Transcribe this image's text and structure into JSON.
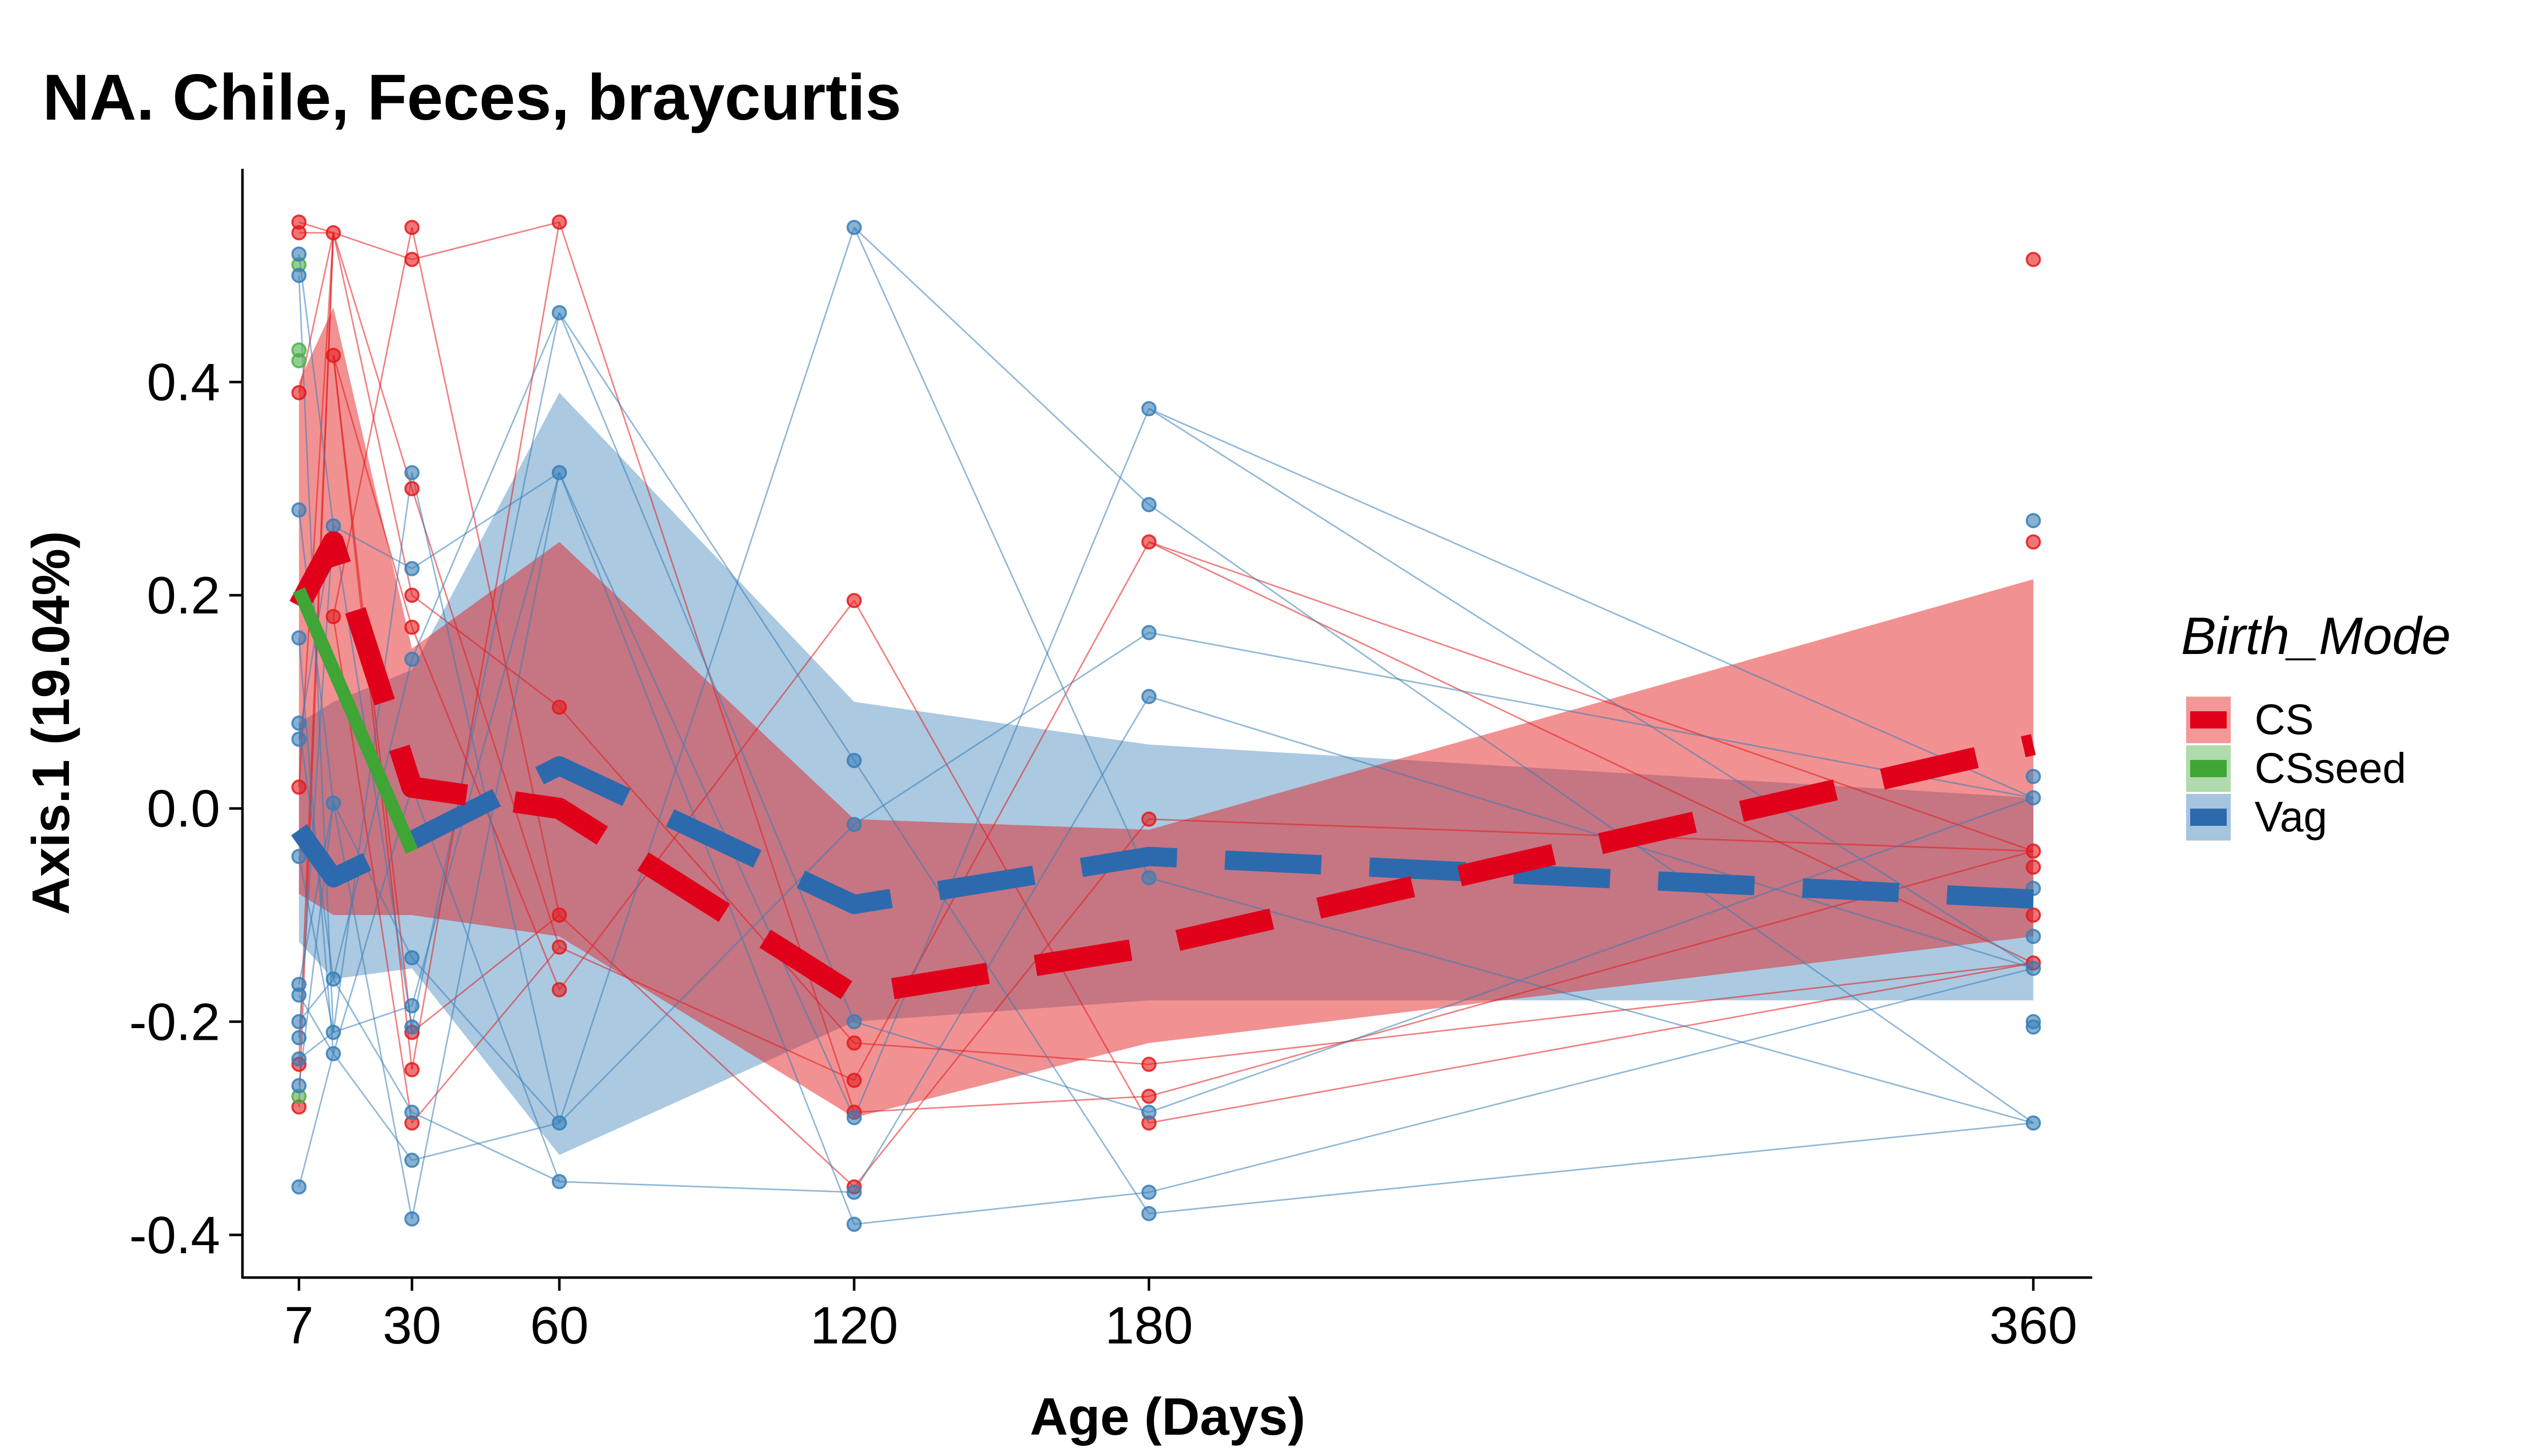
{
  "chart_data": {
    "type": "line",
    "title": "NA. Chile, Feces, braycurtis",
    "xlabel": "Age (Days)",
    "ylabel": "Axis.1 (19.04%)",
    "xlim": [
      -4.5,
      372
    ],
    "ylim": [
      -0.44,
      0.6
    ],
    "x_ticks": [
      7,
      30,
      60,
      120,
      180,
      360
    ],
    "x_tick_labels": [
      "7",
      "30",
      "60",
      "120",
      "180",
      "360"
    ],
    "y_ticks": [
      -0.4,
      -0.2,
      0.0,
      0.2,
      0.4
    ],
    "y_tick_labels": [
      "-0.4",
      "-0.2",
      "0.0",
      "0.2",
      "0.4"
    ],
    "grid": false,
    "legend": {
      "title": "Birth_Mode",
      "position": "right",
      "entries": [
        {
          "label": "CS",
          "color": "#e41a1c"
        },
        {
          "label": "CSseed",
          "color": "#4daf4a"
        },
        {
          "label": "Vag",
          "color": "#377eb8"
        }
      ]
    },
    "colors": {
      "CS": "#e41a1c",
      "CSseed": "#4daf4a",
      "Vag": "#377eb8",
      "CS_mean": "#e0001a",
      "CSseed_mean": "#3fa535",
      "Vag_mean": "#2c6aad"
    },
    "points": {
      "CS": [
        [
          7,
          0.55
        ],
        [
          7,
          0.54
        ],
        [
          7,
          0.39
        ],
        [
          7,
          0.02
        ],
        [
          7,
          -0.24
        ],
        [
          7,
          -0.28
        ],
        [
          14,
          0.54
        ],
        [
          14,
          0.425
        ],
        [
          14,
          0.18
        ],
        [
          30,
          0.545
        ],
        [
          30,
          0.515
        ],
        [
          30,
          0.3
        ],
        [
          30,
          0.2
        ],
        [
          30,
          0.17
        ],
        [
          30,
          -0.21
        ],
        [
          30,
          -0.245
        ],
        [
          30,
          -0.295
        ],
        [
          60,
          0.55
        ],
        [
          60,
          0.095
        ],
        [
          60,
          -0.1
        ],
        [
          60,
          -0.13
        ],
        [
          60,
          -0.17
        ],
        [
          120,
          0.195
        ],
        [
          120,
          -0.22
        ],
        [
          120,
          -0.255
        ],
        [
          120,
          -0.285
        ],
        [
          120,
          -0.355
        ],
        [
          180,
          0.25
        ],
        [
          180,
          -0.01
        ],
        [
          180,
          -0.24
        ],
        [
          180,
          -0.27
        ],
        [
          180,
          -0.295
        ],
        [
          360,
          0.515
        ],
        [
          360,
          0.25
        ],
        [
          360,
          -0.04
        ],
        [
          360,
          -0.055
        ],
        [
          360,
          -0.1
        ],
        [
          360,
          -0.145
        ]
      ],
      "CSseed": [
        [
          7,
          0.43
        ],
        [
          7,
          0.42
        ],
        [
          7,
          0.51
        ],
        [
          7,
          -0.27
        ]
      ],
      "Vag": [
        [
          7,
          0.52
        ],
        [
          7,
          0.5
        ],
        [
          7,
          0.28
        ],
        [
          7,
          0.16
        ],
        [
          7,
          0.08
        ],
        [
          7,
          0.065
        ],
        [
          7,
          -0.045
        ],
        [
          7,
          -0.165
        ],
        [
          7,
          -0.175
        ],
        [
          7,
          -0.2
        ],
        [
          7,
          -0.215
        ],
        [
          7,
          -0.235
        ],
        [
          7,
          -0.26
        ],
        [
          7,
          -0.355
        ],
        [
          14,
          0.265
        ],
        [
          14,
          0.005
        ],
        [
          14,
          -0.16
        ],
        [
          14,
          -0.21
        ],
        [
          14,
          -0.23
        ],
        [
          30,
          0.315
        ],
        [
          30,
          0.225
        ],
        [
          30,
          0.14
        ],
        [
          30,
          0.02
        ],
        [
          30,
          -0.14
        ],
        [
          30,
          -0.185
        ],
        [
          30,
          -0.205
        ],
        [
          30,
          -0.285
        ],
        [
          30,
          -0.33
        ],
        [
          30,
          -0.385
        ],
        [
          60,
          0.465
        ],
        [
          60,
          0.315
        ],
        [
          60,
          -0.295
        ],
        [
          60,
          -0.35
        ],
        [
          120,
          0.545
        ],
        [
          120,
          0.045
        ],
        [
          120,
          -0.015
        ],
        [
          120,
          -0.2
        ],
        [
          120,
          -0.29
        ],
        [
          120,
          -0.36
        ],
        [
          120,
          -0.39
        ],
        [
          180,
          0.375
        ],
        [
          180,
          0.285
        ],
        [
          180,
          0.165
        ],
        [
          180,
          0.105
        ],
        [
          180,
          -0.065
        ],
        [
          180,
          -0.285
        ],
        [
          180,
          -0.36
        ],
        [
          180,
          -0.38
        ],
        [
          360,
          0.27
        ],
        [
          360,
          0.03
        ],
        [
          360,
          0.01
        ],
        [
          360,
          -0.075
        ],
        [
          360,
          -0.12
        ],
        [
          360,
          -0.15
        ],
        [
          360,
          -0.2
        ],
        [
          360,
          -0.205
        ],
        [
          360,
          -0.295
        ]
      ]
    },
    "series": [
      {
        "name": "CS",
        "x": [
          7,
          14,
          30,
          60,
          120,
          180,
          360
        ],
        "y": [
          0.19,
          0.25,
          0.02,
          0.0,
          -0.175,
          -0.13,
          0.06
        ],
        "ribbon_lower": [
          -0.08,
          -0.1,
          -0.1,
          -0.12,
          -0.29,
          -0.22,
          -0.12
        ],
        "ribbon_upper": [
          0.4,
          0.47,
          0.15,
          0.25,
          -0.01,
          -0.02,
          0.215
        ]
      },
      {
        "name": "CSseed",
        "x": [
          7,
          30
        ],
        "y": [
          0.205,
          -0.04
        ]
      },
      {
        "name": "Vag",
        "x": [
          7,
          14,
          30,
          60,
          120,
          180,
          360
        ],
        "y": [
          -0.02,
          -0.065,
          -0.03,
          0.04,
          -0.09,
          -0.045,
          -0.085
        ],
        "ribbon_lower": [
          -0.125,
          -0.16,
          -0.15,
          -0.325,
          -0.2,
          -0.18,
          -0.18
        ],
        "ribbon_upper": [
          0.08,
          0.1,
          0.13,
          0.39,
          0.1,
          0.06,
          0.01
        ]
      }
    ]
  }
}
